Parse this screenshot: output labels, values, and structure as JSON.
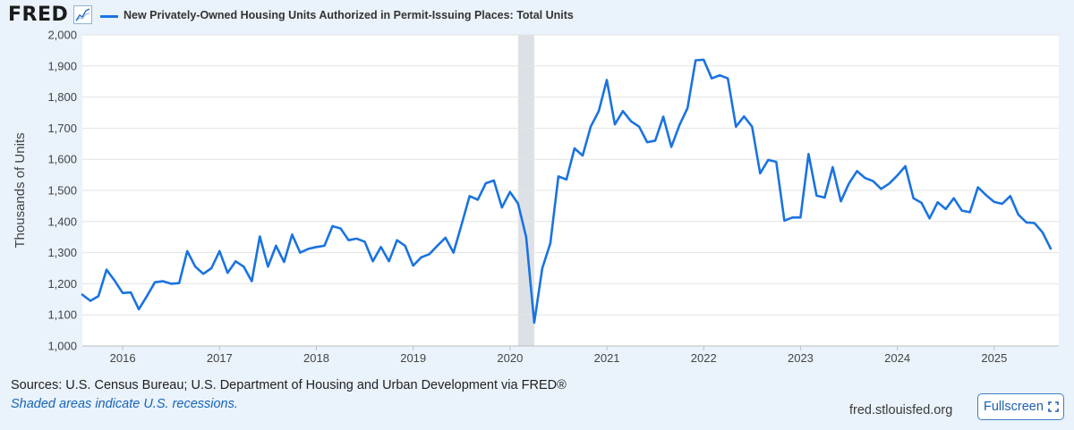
{
  "header": {
    "logo": "FRED",
    "logo_icon": "line-chart-icon",
    "series_title": "New Privately-Owned Housing Units Authorized in Permit-Issuing Places: Total Units"
  },
  "footer": {
    "sources": "Sources: U.S. Census Bureau; U.S. Department of Housing and Urban Development via FRED®",
    "recession_note": "Shaded areas indicate U.S. recessions.",
    "site": "fred.stlouisfed.org",
    "fullscreen_label": "Fullscreen",
    "fullscreen_icon": "expand-corners-icon"
  },
  "colors": {
    "line": "#1a73e0",
    "recession": "#dde1e6",
    "plot_bg": "#ffffff",
    "page_bg": "#eaf2fb",
    "grid": "#e3e3e3"
  },
  "chart_data": {
    "type": "line",
    "title": "New Privately-Owned Housing Units Authorized in Permit-Issuing Places: Total Units",
    "ylabel": "Thousands of Units",
    "xlabel": "",
    "ylim": [
      1000,
      2000
    ],
    "yticks": [
      1000,
      1100,
      1200,
      1300,
      1400,
      1500,
      1600,
      1700,
      1800,
      1900,
      2000
    ],
    "ytick_labels": [
      "1,000",
      "1,100",
      "1,200",
      "1,300",
      "1,400",
      "1,500",
      "1,600",
      "1,700",
      "1,800",
      "1,900",
      "2,000"
    ],
    "xlim": [
      2015.583,
      2025.667
    ],
    "xticks": [
      2016,
      2017,
      2018,
      2019,
      2020,
      2021,
      2022,
      2023,
      2024,
      2025
    ],
    "xtick_labels": [
      "2016",
      "2017",
      "2018",
      "2019",
      "2020",
      "2021",
      "2022",
      "2023",
      "2024",
      "2025"
    ],
    "grid": true,
    "recessions": [
      {
        "start": 2020.083,
        "end": 2020.25
      }
    ],
    "series": [
      {
        "name": "Total Units",
        "start": 2015.583,
        "step": 0.08333,
        "values": [
          1165,
          1145,
          1160,
          1245,
          1210,
          1170,
          1172,
          1118,
          1160,
          1205,
          1208,
          1200,
          1202,
          1305,
          1255,
          1232,
          1250,
          1305,
          1235,
          1272,
          1255,
          1208,
          1352,
          1255,
          1322,
          1270,
          1358,
          1300,
          1312,
          1318,
          1322,
          1385,
          1378,
          1340,
          1345,
          1335,
          1272,
          1318,
          1272,
          1340,
          1322,
          1258,
          1285,
          1295,
          1322,
          1348,
          1300,
          1390,
          1482,
          1470,
          1523,
          1532,
          1445,
          1495,
          1458,
          1350,
          1075,
          1250,
          1330,
          1545,
          1535,
          1635,
          1612,
          1705,
          1755,
          1855,
          1712,
          1755,
          1722,
          1705,
          1655,
          1660,
          1737,
          1640,
          1710,
          1765,
          1918,
          1920,
          1860,
          1870,
          1860,
          1705,
          1738,
          1705,
          1555,
          1598,
          1592,
          1403,
          1413,
          1413,
          1617,
          1483,
          1477,
          1575,
          1465,
          1522,
          1562,
          1540,
          1530,
          1505,
          1522,
          1548,
          1578,
          1475,
          1460,
          1410,
          1462,
          1440,
          1475,
          1435,
          1430,
          1510,
          1485,
          1463,
          1457,
          1482,
          1422,
          1397,
          1395,
          1365,
          1313
        ]
      }
    ]
  }
}
